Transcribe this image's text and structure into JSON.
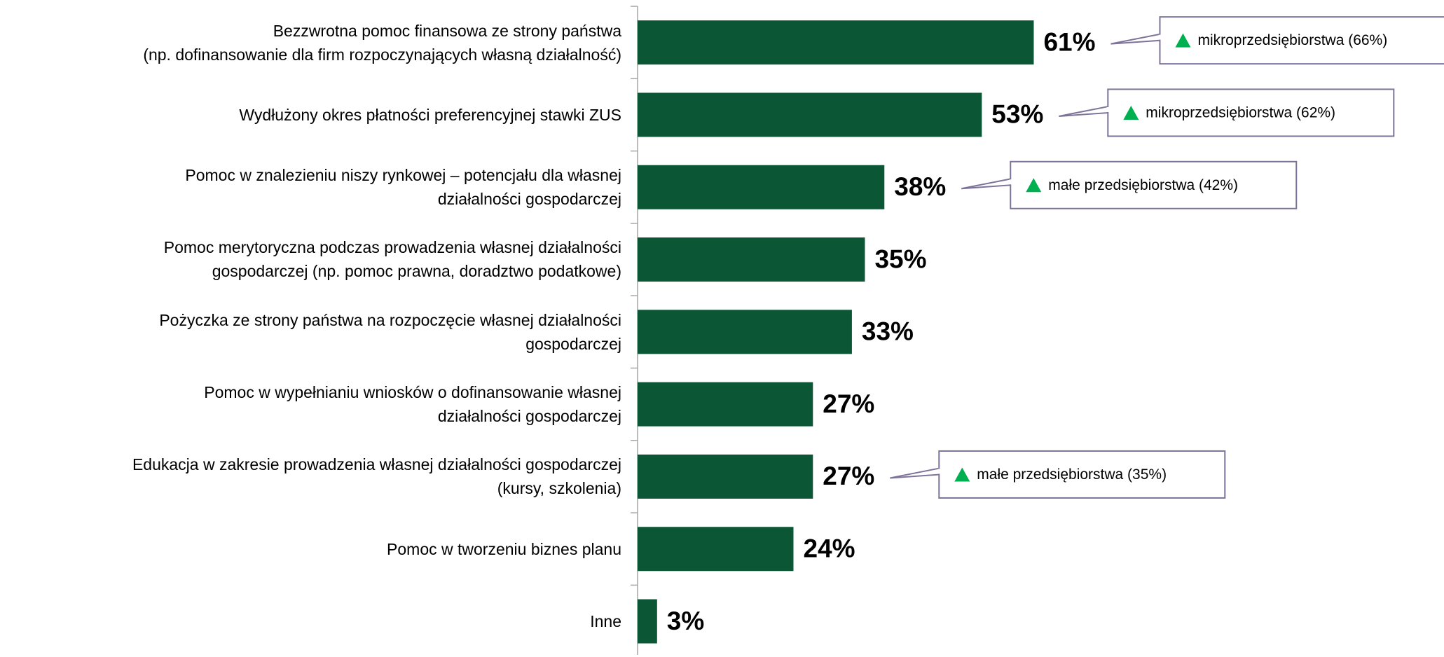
{
  "chart_data": {
    "type": "bar",
    "orientation": "horizontal",
    "categories": [
      "Bezzwrotna pomoc finansowa ze strony państwa\n(np. dofinansowanie dla firm rozpoczynających własną działalność)",
      "Wydłużony okres płatności preferencyjnej stawki ZUS",
      "Pomoc w znalezieniu niszy rynkowej – potencjału dla własnej\ndziałalności gospodarczej",
      "Pomoc merytoryczna podczas prowadzenia własnej działalności\ngospodarczej (np. pomoc prawna, doradztwo podatkowe)",
      "Pożyczka ze strony państwa na rozpoczęcie własnej działalności\ngospodarczej",
      "Pomoc w wypełnianiu wniosków o dofinansowanie własnej\ndziałalności gospodarczej",
      "Edukacja w zakresie prowadzenia własnej działalności gospodarczej\n(kursy, szkolenia)",
      "Pomoc w tworzeniu biznes planu",
      "Inne"
    ],
    "values": [
      61,
      53,
      38,
      35,
      33,
      27,
      27,
      24,
      3
    ],
    "value_labels": [
      "61%",
      "53%",
      "38%",
      "35%",
      "33%",
      "27%",
      "27%",
      "24%",
      "3%"
    ],
    "annotations": [
      "mikroprzedsiębiorstwa (66%)",
      "mikroprzedsiębiorstwa (62%)",
      "małe przedsiębiorstwa (42%)",
      null,
      null,
      null,
      "małe przedsiębiorstwa (35%)",
      null,
      null
    ],
    "color": "#0b5634",
    "annotation_marker_color": "#00b050"
  }
}
